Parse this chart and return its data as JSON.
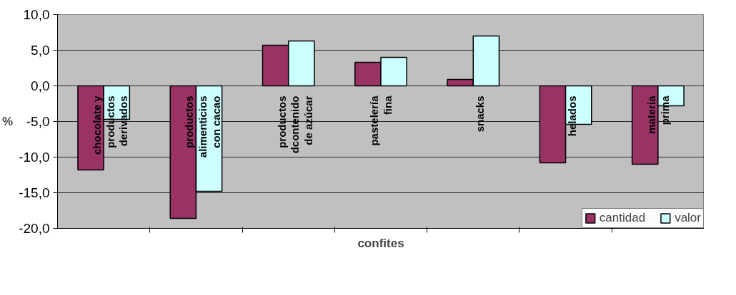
{
  "chart_data": {
    "type": "bar",
    "xlabel": "confites",
    "ylabel": "%",
    "categories": [
      "chocolate y\nproductos\nderivados",
      "productos\nalimenticios\ncon cacao",
      "productos\ndcontenido\nde azúcar",
      "pastelería\nfina",
      "snacks",
      "helados",
      "materia\nprima"
    ],
    "series": [
      {
        "name": "cantidad",
        "color": "#993366",
        "values": [
          -11.8,
          -18.6,
          5.7,
          3.3,
          0.9,
          -10.8,
          -11.0
        ]
      },
      {
        "name": "valor",
        "color": "#ccffff",
        "values": [
          -4.7,
          -14.8,
          6.3,
          4.0,
          7.0,
          -5.4,
          -2.8
        ]
      }
    ],
    "ylim": [
      -20,
      10
    ],
    "yticks": [
      {
        "value": -20,
        "label": "-20,0"
      },
      {
        "value": -15,
        "label": "-15,0"
      },
      {
        "value": -10,
        "label": "-10,0"
      },
      {
        "value": -5,
        "label": "-5,0"
      },
      {
        "value": 0,
        "label": "0,0"
      },
      {
        "value": 5,
        "label": "5,0"
      },
      {
        "value": 10,
        "label": "10,0"
      }
    ],
    "grid": "y",
    "legend": "bottom right"
  }
}
